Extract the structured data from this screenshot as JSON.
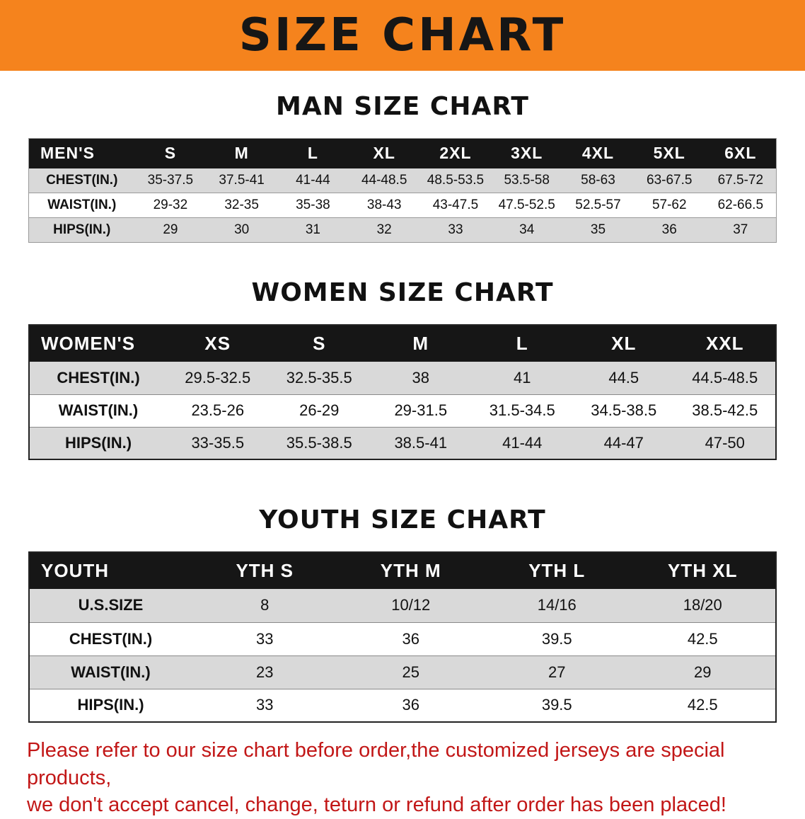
{
  "banner": {
    "title": "SIZE CHART",
    "bg_color": "#F5831D"
  },
  "sections": [
    {
      "heading": "MAN SIZE CHART",
      "header_row": [
        "MEN'S",
        "S",
        "M",
        "L",
        "XL",
        "2XL",
        "3XL",
        "4XL",
        "5XL",
        "6XL"
      ],
      "rows": [
        [
          "CHEST(IN.)",
          "35-37.5",
          "37.5-41",
          "41-44",
          "44-48.5",
          "48.5-53.5",
          "53.5-58",
          "58-63",
          "63-67.5",
          "67.5-72"
        ],
        [
          "WAIST(IN.)",
          "29-32",
          "32-35",
          "35-38",
          "38-43",
          "43-47.5",
          "47.5-52.5",
          "52.5-57",
          "57-62",
          "62-66.5"
        ],
        [
          "HIPS(IN.)",
          "29",
          "30",
          "31",
          "32",
          "33",
          "34",
          "35",
          "36",
          "37"
        ]
      ]
    },
    {
      "heading": "WOMEN SIZE CHART",
      "header_row": [
        "WOMEN'S",
        "XS",
        "S",
        "M",
        "L",
        "XL",
        "XXL"
      ],
      "rows": [
        [
          "CHEST(IN.)",
          "29.5-32.5",
          "32.5-35.5",
          "38",
          "41",
          "44.5",
          "44.5-48.5"
        ],
        [
          "WAIST(IN.)",
          "23.5-26",
          "26-29",
          "29-31.5",
          "31.5-34.5",
          "34.5-38.5",
          "38.5-42.5"
        ],
        [
          "HIPS(IN.)",
          "33-35.5",
          "35.5-38.5",
          "38.5-41",
          "41-44",
          "44-47",
          "47-50"
        ]
      ]
    },
    {
      "heading": "YOUTH SIZE CHART",
      "header_row": [
        "YOUTH",
        "YTH S",
        "YTH M",
        "YTH L",
        "YTH XL"
      ],
      "rows": [
        [
          "U.S.SIZE",
          "8",
          "10/12",
          "14/16",
          "18/20"
        ],
        [
          "CHEST(IN.)",
          "33",
          "36",
          "39.5",
          "42.5"
        ],
        [
          "WAIST(IN.)",
          "23",
          "25",
          "27",
          "29"
        ],
        [
          "HIPS(IN.)",
          "33",
          "36",
          "39.5",
          "42.5"
        ]
      ]
    }
  ],
  "footer": {
    "line1": "Please refer to our size chart before order,the customized jerseys are special products,",
    "line2": "we don't accept cancel, change, teturn or refund after order has been placed!",
    "text_color": "#C21717"
  }
}
